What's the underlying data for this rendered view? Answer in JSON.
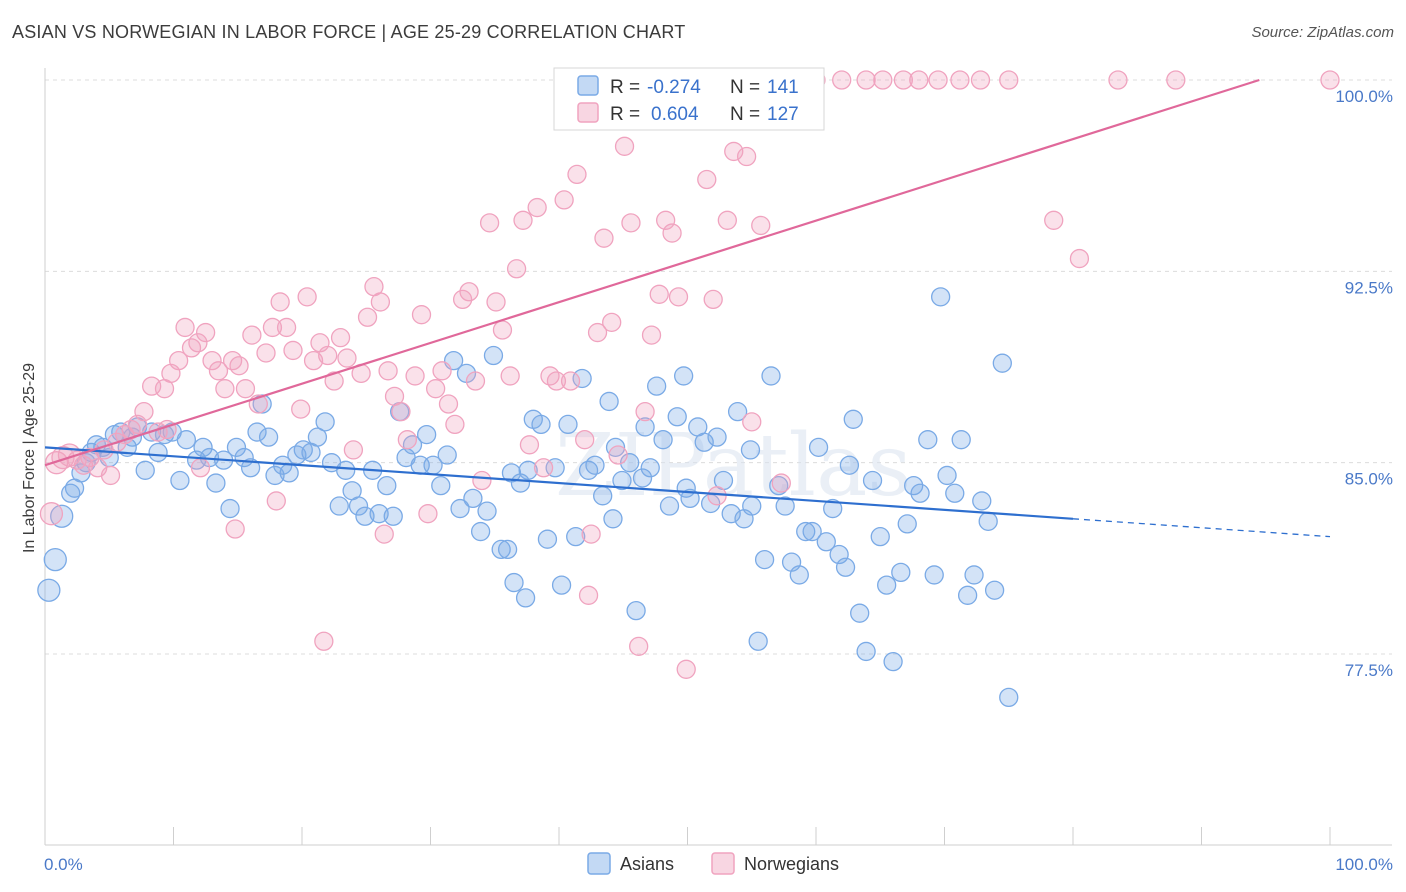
{
  "title": "ASIAN VS NORWEGIAN IN LABOR FORCE | AGE 25-29 CORRELATION CHART",
  "source": "Source: ZipAtlas.com",
  "watermark": "ZIPatlas",
  "chart_data": {
    "type": "scatter",
    "ylabel": "In Labor Force | Age 25-29",
    "xlim": [
      0,
      100
    ],
    "ylim": [
      70,
      100.5
    ],
    "y_ticks": [
      100.0,
      92.5,
      85.0,
      77.5
    ],
    "y_tick_labels": [
      "100.0%",
      "92.5%",
      "85.0%",
      "77.5%"
    ],
    "x_tick_labels": [
      "0.0%",
      "100.0%"
    ],
    "grid": true,
    "legend_position": "top-center",
    "legend": [
      {
        "r_label": "R =",
        "r_value": "-0.274",
        "n_label": "N =",
        "n_value": "141"
      },
      {
        "r_label": "R =",
        "r_value": "0.604",
        "n_label": "N =",
        "n_value": "127"
      }
    ],
    "series": [
      {
        "name": "Asians",
        "color": "#7aaae6",
        "line_color": "#2e6fcf",
        "trend": {
          "x0": 0,
          "y0": 85.6,
          "x1": 80,
          "y1": 82.8,
          "dash_to_x": 100,
          "dash_to_y": 82.1
        },
        "points": [
          [
            0.3,
            80.0
          ],
          [
            0.8,
            81.2
          ],
          [
            1.3,
            82.9
          ],
          [
            2.0,
            83.8
          ],
          [
            2.3,
            84.0
          ],
          [
            2.8,
            84.6
          ],
          [
            3.2,
            85.0
          ],
          [
            3.6,
            85.4
          ],
          [
            4.0,
            85.7
          ],
          [
            4.5,
            85.6
          ],
          [
            5.0,
            85.2
          ],
          [
            5.4,
            86.1
          ],
          [
            5.9,
            86.2
          ],
          [
            6.4,
            85.6
          ],
          [
            6.8,
            86.0
          ],
          [
            7.2,
            86.4
          ],
          [
            7.8,
            84.7
          ],
          [
            8.3,
            86.2
          ],
          [
            8.8,
            85.4
          ],
          [
            9.3,
            86.1
          ],
          [
            9.9,
            86.2
          ],
          [
            10.5,
            84.3
          ],
          [
            11.0,
            85.9
          ],
          [
            11.8,
            85.1
          ],
          [
            12.3,
            85.6
          ],
          [
            12.8,
            85.2
          ],
          [
            13.3,
            84.2
          ],
          [
            13.9,
            85.1
          ],
          [
            14.4,
            83.2
          ],
          [
            14.9,
            85.6
          ],
          [
            15.5,
            85.2
          ],
          [
            16.0,
            84.8
          ],
          [
            16.5,
            86.2
          ],
          [
            16.9,
            87.3
          ],
          [
            17.4,
            86.0
          ],
          [
            17.9,
            84.5
          ],
          [
            18.5,
            84.9
          ],
          [
            19.0,
            84.6
          ],
          [
            19.6,
            85.3
          ],
          [
            20.1,
            85.5
          ],
          [
            20.7,
            85.4
          ],
          [
            21.2,
            86.0
          ],
          [
            21.8,
            86.6
          ],
          [
            22.3,
            85.0
          ],
          [
            22.9,
            83.3
          ],
          [
            23.4,
            84.7
          ],
          [
            23.9,
            83.9
          ],
          [
            24.4,
            83.3
          ],
          [
            24.9,
            82.9
          ],
          [
            25.5,
            84.7
          ],
          [
            26.0,
            83.0
          ],
          [
            26.6,
            84.1
          ],
          [
            27.1,
            82.9
          ],
          [
            27.6,
            87.0
          ],
          [
            28.1,
            85.2
          ],
          [
            28.6,
            85.7
          ],
          [
            29.2,
            84.9
          ],
          [
            29.7,
            86.1
          ],
          [
            30.2,
            84.9
          ],
          [
            30.8,
            84.1
          ],
          [
            31.3,
            85.3
          ],
          [
            31.8,
            89.0
          ],
          [
            32.3,
            83.2
          ],
          [
            32.8,
            88.5
          ],
          [
            33.3,
            83.6
          ],
          [
            33.9,
            82.3
          ],
          [
            34.4,
            83.1
          ],
          [
            34.9,
            89.2
          ],
          [
            35.5,
            81.6
          ],
          [
            36.0,
            81.6
          ],
          [
            36.5,
            80.3
          ],
          [
            37.0,
            84.2
          ],
          [
            37.6,
            84.7
          ],
          [
            38.0,
            86.7
          ],
          [
            38.6,
            86.5
          ],
          [
            39.1,
            82.0
          ],
          [
            39.7,
            84.8
          ],
          [
            40.2,
            80.2
          ],
          [
            40.7,
            86.5
          ],
          [
            41.3,
            82.1
          ],
          [
            41.8,
            88.3
          ],
          [
            42.3,
            84.7
          ],
          [
            42.8,
            84.9
          ],
          [
            43.4,
            83.7
          ],
          [
            43.9,
            87.4
          ],
          [
            44.4,
            85.6
          ],
          [
            44.9,
            84.3
          ],
          [
            45.5,
            85.0
          ],
          [
            46.0,
            79.2
          ],
          [
            46.5,
            84.4
          ],
          [
            47.1,
            84.8
          ],
          [
            47.6,
            88.0
          ],
          [
            48.1,
            85.9
          ],
          [
            48.6,
            83.3
          ],
          [
            49.2,
            86.8
          ],
          [
            49.7,
            88.4
          ],
          [
            50.2,
            83.6
          ],
          [
            50.8,
            86.4
          ],
          [
            51.3,
            85.8
          ],
          [
            51.8,
            83.4
          ],
          [
            52.3,
            86.0
          ],
          [
            52.8,
            84.3
          ],
          [
            53.4,
            83.0
          ],
          [
            53.9,
            87.0
          ],
          [
            54.4,
            82.8
          ],
          [
            55.0,
            83.3
          ],
          [
            55.5,
            78.0
          ],
          [
            56.0,
            81.2
          ],
          [
            56.5,
            88.4
          ],
          [
            57.1,
            84.1
          ],
          [
            57.6,
            83.3
          ],
          [
            58.1,
            81.1
          ],
          [
            58.7,
            80.6
          ],
          [
            59.2,
            82.3
          ],
          [
            59.7,
            82.3
          ],
          [
            60.2,
            85.6
          ],
          [
            60.8,
            81.9
          ],
          [
            61.3,
            83.2
          ],
          [
            61.8,
            81.4
          ],
          [
            62.3,
            80.9
          ],
          [
            62.9,
            86.7
          ],
          [
            63.4,
            79.1
          ],
          [
            63.9,
            77.6
          ],
          [
            64.4,
            84.3
          ],
          [
            65.0,
            82.1
          ],
          [
            65.5,
            80.2
          ],
          [
            66.0,
            77.2
          ],
          [
            66.6,
            80.7
          ],
          [
            67.1,
            82.6
          ],
          [
            67.6,
            84.1
          ],
          [
            68.1,
            83.8
          ],
          [
            68.7,
            85.9
          ],
          [
            69.2,
            80.6
          ],
          [
            69.7,
            91.5
          ],
          [
            70.2,
            84.5
          ],
          [
            70.8,
            83.8
          ],
          [
            71.3,
            85.9
          ],
          [
            71.8,
            79.8
          ],
          [
            72.3,
            80.6
          ],
          [
            72.9,
            83.5
          ],
          [
            73.4,
            82.7
          ],
          [
            73.9,
            80.0
          ],
          [
            74.5,
            88.9
          ],
          [
            75.0,
            75.8
          ],
          [
            36.3,
            84.6
          ],
          [
            37.4,
            79.7
          ],
          [
            44.2,
            82.8
          ],
          [
            46.7,
            86.4
          ],
          [
            54.9,
            85.5
          ],
          [
            49.9,
            84.0
          ],
          [
            62.6,
            84.9
          ]
        ]
      },
      {
        "name": "Norwegians",
        "color": "#f0a3bf",
        "line_color": "#e0689a",
        "trend": {
          "x0": 0,
          "y0": 84.9,
          "x1": 94.5,
          "y1": 100.0
        },
        "points": [
          [
            0.5,
            83.0
          ],
          [
            0.9,
            85.0
          ],
          [
            1.4,
            85.2
          ],
          [
            1.9,
            85.3
          ],
          [
            2.5,
            85.1
          ],
          [
            3.0,
            84.9
          ],
          [
            3.5,
            85.2
          ],
          [
            4.1,
            84.8
          ],
          [
            4.6,
            85.5
          ],
          [
            5.1,
            84.5
          ],
          [
            5.6,
            85.8
          ],
          [
            6.2,
            86.1
          ],
          [
            6.7,
            86.3
          ],
          [
            7.2,
            86.5
          ],
          [
            7.7,
            87.0
          ],
          [
            8.3,
            88.0
          ],
          [
            8.8,
            86.2
          ],
          [
            9.3,
            87.9
          ],
          [
            9.8,
            88.5
          ],
          [
            10.4,
            89.0
          ],
          [
            10.9,
            90.3
          ],
          [
            11.4,
            89.5
          ],
          [
            11.9,
            89.7
          ],
          [
            12.5,
            90.1
          ],
          [
            13.0,
            89.0
          ],
          [
            13.5,
            88.6
          ],
          [
            14.0,
            87.9
          ],
          [
            14.6,
            89.0
          ],
          [
            15.1,
            88.8
          ],
          [
            15.6,
            87.9
          ],
          [
            16.1,
            90.0
          ],
          [
            16.6,
            87.3
          ],
          [
            17.2,
            89.3
          ],
          [
            17.7,
            90.3
          ],
          [
            18.3,
            91.3
          ],
          [
            18.8,
            90.3
          ],
          [
            19.3,
            89.4
          ],
          [
            19.9,
            87.1
          ],
          [
            20.4,
            91.5
          ],
          [
            20.9,
            89.0
          ],
          [
            21.4,
            89.7
          ],
          [
            22.0,
            89.2
          ],
          [
            22.5,
            88.2
          ],
          [
            23.0,
            89.9
          ],
          [
            23.5,
            89.1
          ],
          [
            24.0,
            85.5
          ],
          [
            24.6,
            88.5
          ],
          [
            25.1,
            90.7
          ],
          [
            25.6,
            91.9
          ],
          [
            26.1,
            91.3
          ],
          [
            26.7,
            88.6
          ],
          [
            27.2,
            87.6
          ],
          [
            27.7,
            87.0
          ],
          [
            28.2,
            85.9
          ],
          [
            28.8,
            88.4
          ],
          [
            29.3,
            90.8
          ],
          [
            29.8,
            83.0
          ],
          [
            30.4,
            87.9
          ],
          [
            30.9,
            88.6
          ],
          [
            31.4,
            87.3
          ],
          [
            31.9,
            86.5
          ],
          [
            32.5,
            91.4
          ],
          [
            33.0,
            91.7
          ],
          [
            33.5,
            88.2
          ],
          [
            34.0,
            84.3
          ],
          [
            34.6,
            94.4
          ],
          [
            35.1,
            91.3
          ],
          [
            35.6,
            90.2
          ],
          [
            36.2,
            88.4
          ],
          [
            36.7,
            92.6
          ],
          [
            37.2,
            94.5
          ],
          [
            37.7,
            85.7
          ],
          [
            38.3,
            95.0
          ],
          [
            38.8,
            84.8
          ],
          [
            39.3,
            88.4
          ],
          [
            39.8,
            88.2
          ],
          [
            40.4,
            95.3
          ],
          [
            40.9,
            88.2
          ],
          [
            41.4,
            96.3
          ],
          [
            42.0,
            85.9
          ],
          [
            42.5,
            82.2
          ],
          [
            43.0,
            90.1
          ],
          [
            43.5,
            93.8
          ],
          [
            44.1,
            90.5
          ],
          [
            44.6,
            85.3
          ],
          [
            45.1,
            97.4
          ],
          [
            45.6,
            94.4
          ],
          [
            46.2,
            77.8
          ],
          [
            46.7,
            87.0
          ],
          [
            47.2,
            90.0
          ],
          [
            47.8,
            91.6
          ],
          [
            48.3,
            94.5
          ],
          [
            48.8,
            94.0
          ],
          [
            49.3,
            91.5
          ],
          [
            49.9,
            76.9
          ],
          [
            50.4,
            100.0
          ],
          [
            50.9,
            100.0
          ],
          [
            51.5,
            96.1
          ],
          [
            52.0,
            91.4
          ],
          [
            52.5,
            100.0
          ],
          [
            53.1,
            94.5
          ],
          [
            53.6,
            97.2
          ],
          [
            54.1,
            100.0
          ],
          [
            54.6,
            97.0
          ],
          [
            55.2,
            100.0
          ],
          [
            55.7,
            94.3
          ],
          [
            56.2,
            100.0
          ],
          [
            56.8,
            100.0
          ],
          [
            57.3,
            84.2
          ],
          [
            57.8,
            100.0
          ],
          [
            58.3,
            100.0
          ],
          [
            58.9,
            100.0
          ],
          [
            59.4,
            100.0
          ],
          [
            60.0,
            100.0
          ],
          [
            62.0,
            100.0
          ],
          [
            63.9,
            100.0
          ],
          [
            65.2,
            100.0
          ],
          [
            66.8,
            100.0
          ],
          [
            68.0,
            100.0
          ],
          [
            69.5,
            100.0
          ],
          [
            71.2,
            100.0
          ],
          [
            72.8,
            100.0
          ],
          [
            75.0,
            100.0
          ],
          [
            78.5,
            94.5
          ],
          [
            80.5,
            93.0
          ],
          [
            83.5,
            100.0
          ],
          [
            100.0,
            100.0
          ],
          [
            88.0,
            100.0
          ],
          [
            26.4,
            82.2
          ],
          [
            21.7,
            78.0
          ],
          [
            9.5,
            86.3
          ],
          [
            14.8,
            82.4
          ],
          [
            12.1,
            84.8
          ],
          [
            18.0,
            83.5
          ],
          [
            52.3,
            83.7
          ],
          [
            55.0,
            86.6
          ],
          [
            42.3,
            79.8
          ]
        ]
      }
    ]
  },
  "bottom_legend": [
    {
      "label": "Asians"
    },
    {
      "label": "Norwegians"
    }
  ]
}
